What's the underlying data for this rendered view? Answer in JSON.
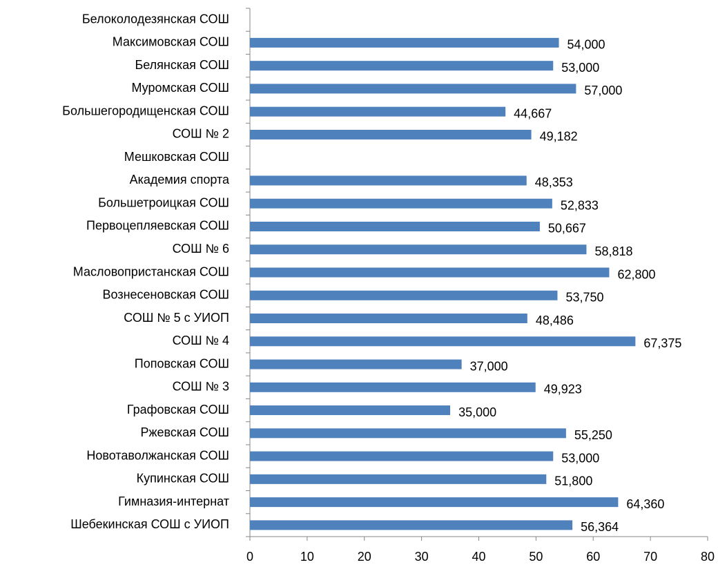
{
  "chart_data": {
    "type": "barh",
    "categories": [
      "Белоколодезянская СОШ",
      "Максимовская СОШ",
      "Белянская СОШ",
      "Муромская СОШ",
      "Большегородищенская СОШ",
      "СОШ № 2",
      "Мешковская СОШ",
      "Академия спорта",
      "Большетроицкая СОШ",
      "Первоцепляевская СОШ",
      "СОШ № 6",
      "Масловопристанская СОШ",
      "Вознесеновская СОШ",
      "СОШ № 5 с УИОП",
      "СОШ № 4",
      "Поповская СОШ",
      "СОШ № 3",
      "Графовская СОШ",
      "Ржевская СОШ",
      "Новотаволжанская СОШ",
      "Купинская СОШ",
      "Гимназия-интернат",
      "Шебекинская СОШ с УИОП"
    ],
    "values": [
      null,
      54,
      53,
      57,
      44.667,
      49.182,
      null,
      48.353,
      52.833,
      50.667,
      58.818,
      62.8,
      53.75,
      48.486,
      67.375,
      37,
      49.923,
      35,
      55.25,
      53,
      51.8,
      64.36,
      56.364
    ],
    "value_labels": [
      null,
      "54,000",
      "53,000",
      "57,000",
      "44,667",
      "49,182",
      null,
      "48,353",
      "52,833",
      "50,667",
      "58,818",
      "62,800",
      "53,750",
      "48,486",
      "67,375",
      "37,000",
      "49,923",
      "35,000",
      "55,250",
      "53,000",
      "51,800",
      "64,360",
      "56,364"
    ],
    "color": "#4f81bd",
    "xlim": [
      0,
      80
    ],
    "xticks": [
      0,
      10,
      20,
      30,
      40,
      50,
      60,
      70,
      80
    ],
    "grid": false
  }
}
